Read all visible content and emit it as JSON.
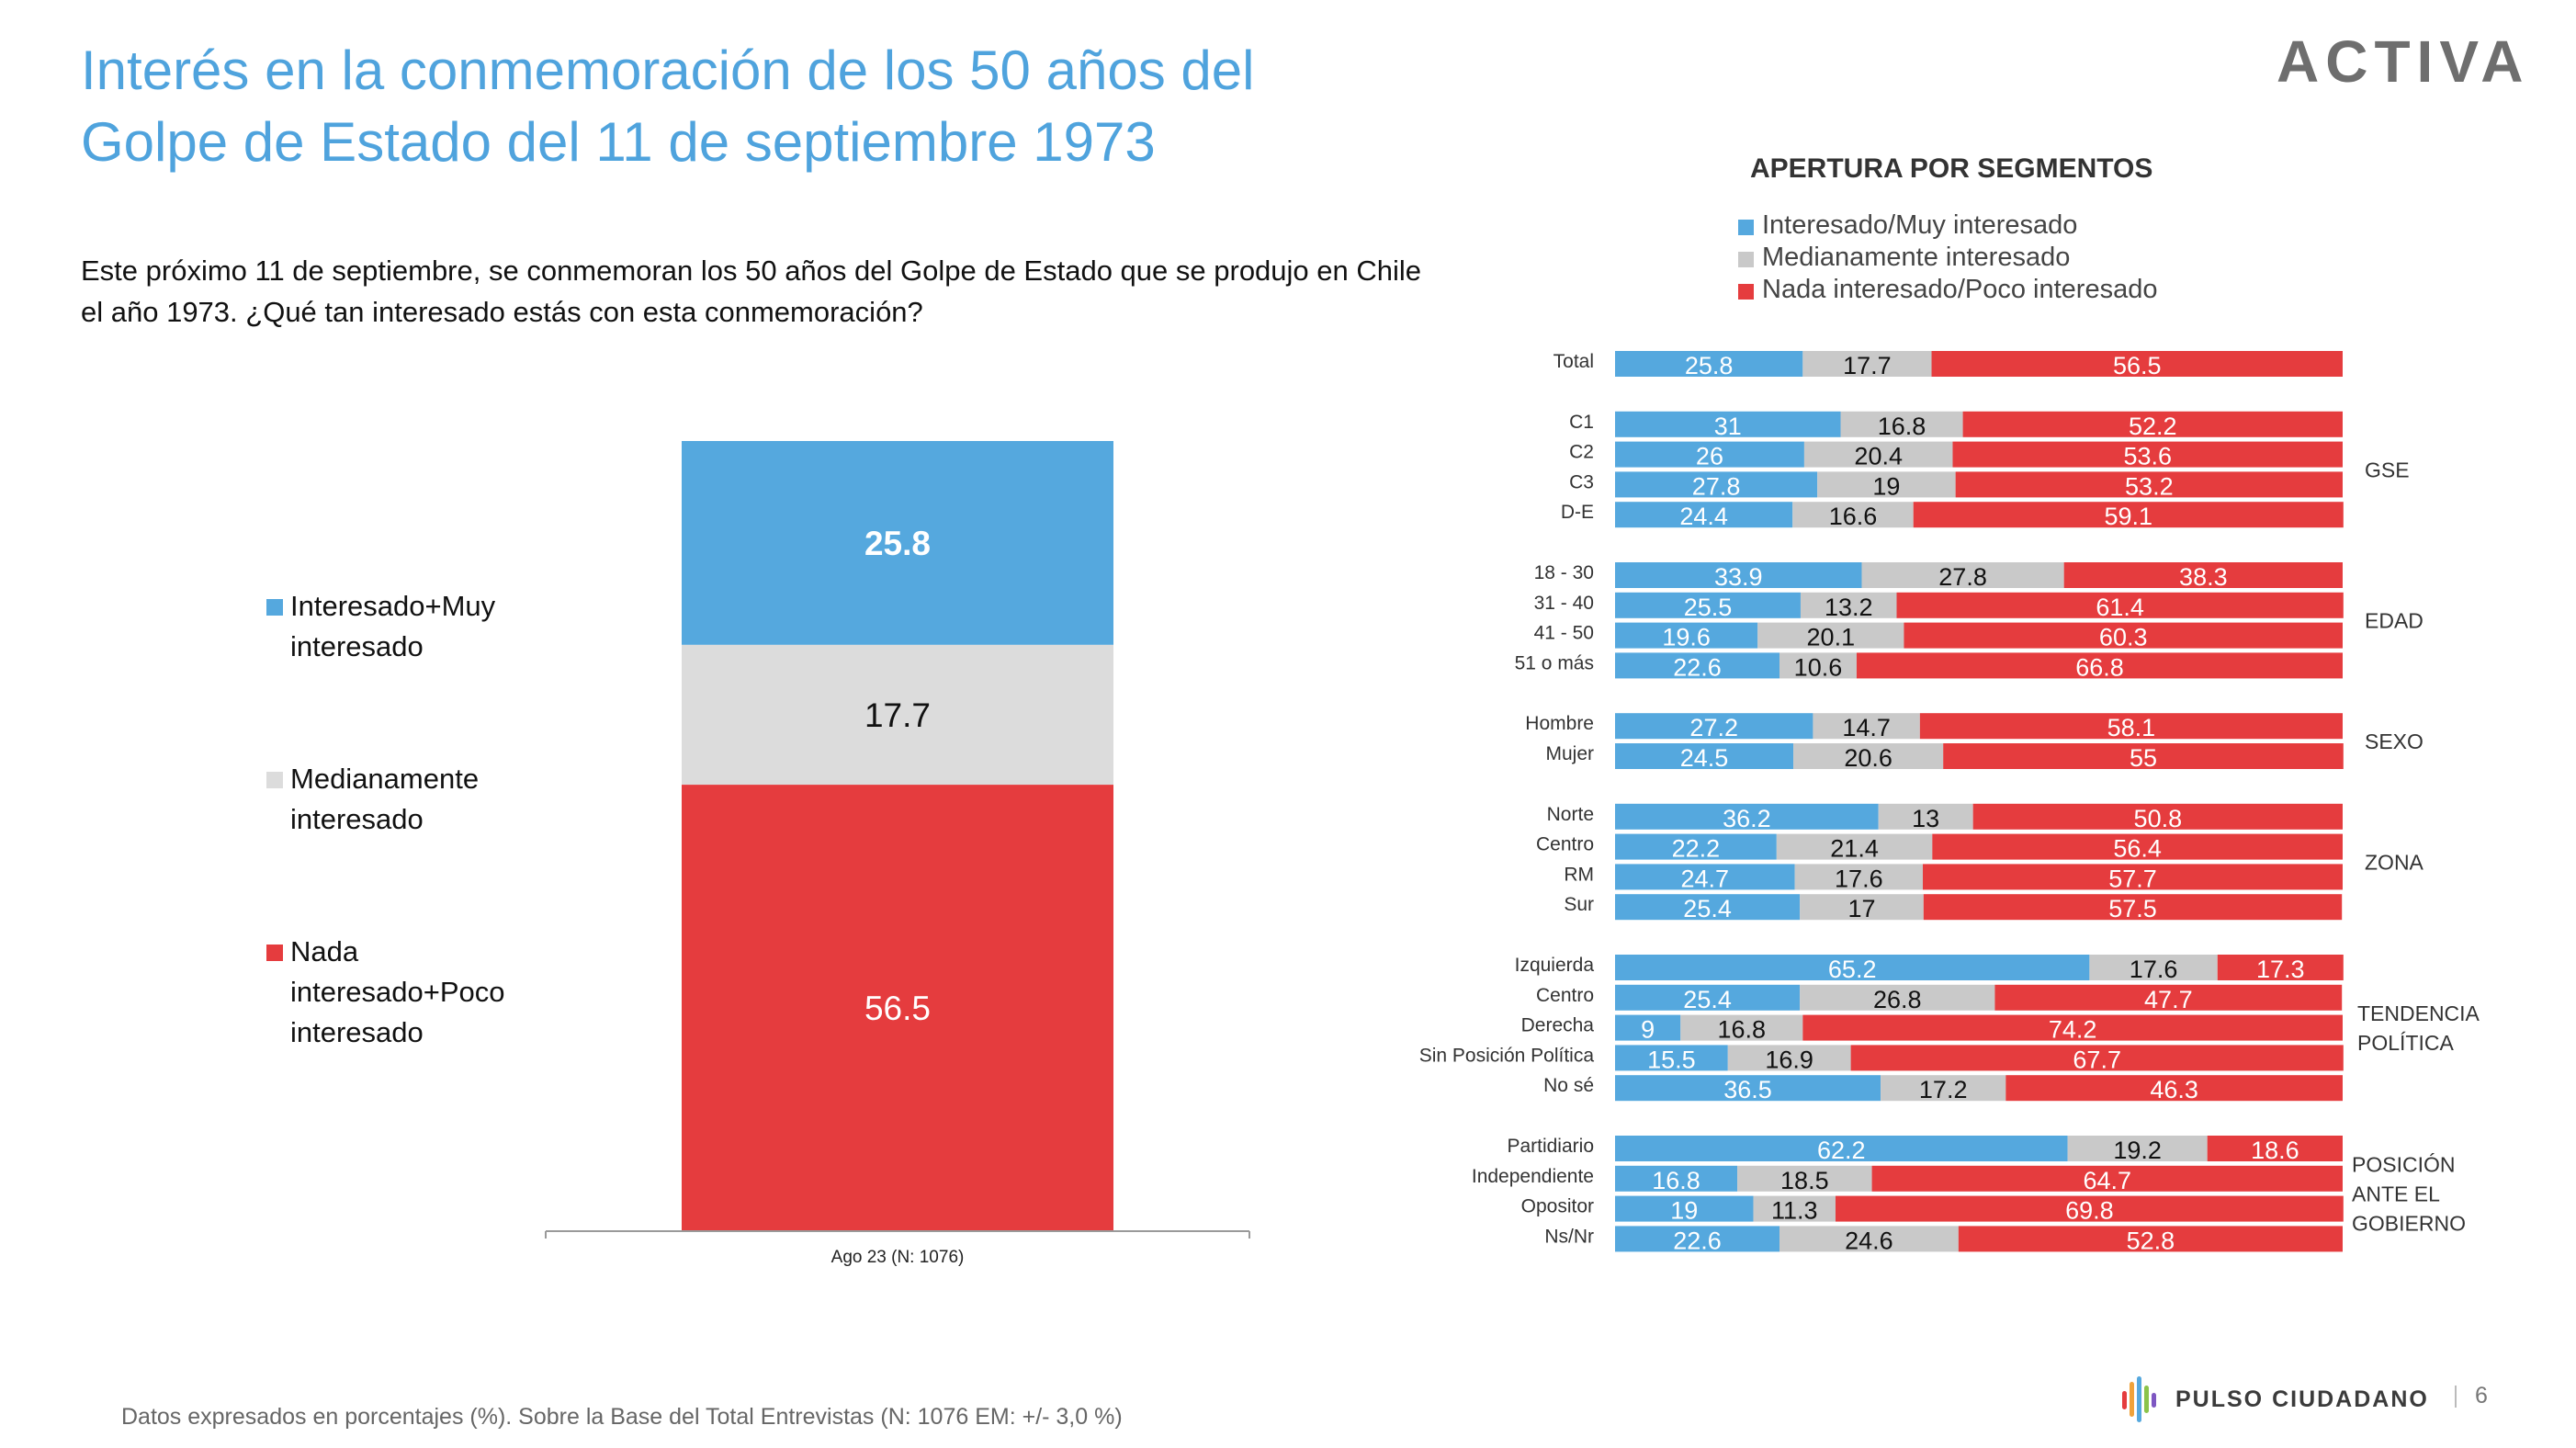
{
  "header": {
    "title_line1": "Interés en la conmemoración de los 50 años del",
    "title_line2": "Golpe de Estado del 11 de  septiembre 1973",
    "brand": "ACTIVA"
  },
  "question": "Este próximo 11 de septiembre, se conmemoran los 50 años del Golpe de Estado que se produjo en Chile el año 1973. ¿Qué tan interesado estás con esta conmemoración?",
  "colors": {
    "blue": "#55a8de",
    "gray": "#c9c9c9",
    "gray_light": "#dcdcdc",
    "red": "#e53c3e",
    "title_blue": "#4fa3dd"
  },
  "chart_data": [
    {
      "type": "bar",
      "stacked": true,
      "categories": [
        "Ago 23 (N: 1076)"
      ],
      "series": [
        {
          "name": "Interesado+Muy interesado",
          "values": [
            25.8
          ]
        },
        {
          "name": "Medianamente interesado",
          "values": [
            17.7
          ]
        },
        {
          "name": "Nada interesado+Poco interesado",
          "values": [
            56.5
          ]
        }
      ],
      "ylim": [
        0,
        100
      ],
      "legend": "left"
    },
    {
      "type": "bar",
      "orientation": "horizontal",
      "stacked": true,
      "title": "APERTURA POR SEGMENTOS",
      "legend": "top",
      "series_names": [
        "Interesado/Muy interesado",
        "Medianamente interesado",
        "Nada interesado/Poco interesado"
      ],
      "xlim": [
        0,
        100
      ],
      "groups": [
        {
          "label": "",
          "rows": [
            {
              "label": "Total",
              "values": [
                25.8,
                17.7,
                56.5
              ]
            }
          ]
        },
        {
          "label": "GSE",
          "rows": [
            {
              "label": "C1",
              "values": [
                31,
                16.8,
                52.2
              ]
            },
            {
              "label": "C2",
              "values": [
                26,
                20.4,
                53.6
              ]
            },
            {
              "label": "C3",
              "values": [
                27.8,
                19,
                53.2
              ]
            },
            {
              "label": "D-E",
              "values": [
                24.4,
                16.6,
                59.1
              ]
            }
          ]
        },
        {
          "label": "EDAD",
          "rows": [
            {
              "label": "18 - 30",
              "values": [
                33.9,
                27.8,
                38.3
              ]
            },
            {
              "label": "31 - 40",
              "values": [
                25.5,
                13.2,
                61.4
              ]
            },
            {
              "label": "41 - 50",
              "values": [
                19.6,
                20.1,
                60.3
              ]
            },
            {
              "label": "51 o más",
              "values": [
                22.6,
                10.6,
                66.8
              ]
            }
          ]
        },
        {
          "label": "SEXO",
          "rows": [
            {
              "label": "Hombre",
              "values": [
                27.2,
                14.7,
                58.1
              ]
            },
            {
              "label": "Mujer",
              "values": [
                24.5,
                20.6,
                55
              ]
            }
          ]
        },
        {
          "label": "ZONA",
          "rows": [
            {
              "label": "Norte",
              "values": [
                36.2,
                13,
                50.8
              ]
            },
            {
              "label": "Centro",
              "values": [
                22.2,
                21.4,
                56.4
              ]
            },
            {
              "label": "RM",
              "values": [
                24.7,
                17.6,
                57.7
              ]
            },
            {
              "label": "Sur",
              "values": [
                25.4,
                17,
                57.5
              ]
            }
          ]
        },
        {
          "label": "TENDENCIA POLÍTICA",
          "label_lines": [
            "TENDENCIA",
            "POLÍTICA"
          ],
          "rows": [
            {
              "label": "Izquierda",
              "values": [
                65.2,
                17.6,
                17.3
              ]
            },
            {
              "label": "Centro",
              "values": [
                25.4,
                26.8,
                47.7
              ]
            },
            {
              "label": "Derecha",
              "values": [
                9,
                16.8,
                74.2
              ]
            },
            {
              "label": "Sin Posición Política",
              "values": [
                15.5,
                16.9,
                67.7
              ]
            },
            {
              "label": "No sé",
              "values": [
                36.5,
                17.2,
                46.3
              ]
            }
          ]
        },
        {
          "label": "POSICIÓN ANTE EL GOBIERNO",
          "label_lines": [
            "POSICIÓN",
            "ANTE EL",
            "GOBIERNO"
          ],
          "rows": [
            {
              "label": "Partidiario",
              "values": [
                62.2,
                19.2,
                18.6
              ]
            },
            {
              "label": "Independiente",
              "values": [
                16.8,
                18.5,
                64.7
              ]
            },
            {
              "label": "Opositor",
              "values": [
                19,
                11.3,
                69.8
              ]
            },
            {
              "label": "Ns/Nr",
              "values": [
                22.6,
                24.6,
                52.8
              ]
            }
          ]
        }
      ]
    }
  ],
  "main_legend": [
    {
      "lines": [
        "Interesado+Muy",
        "interesado"
      ],
      "icon": "blue-square-icon"
    },
    {
      "lines": [
        "Medianamente",
        "interesado"
      ],
      "icon": "gray-square-icon"
    },
    {
      "lines": [
        "Nada",
        "interesado+Poco",
        "interesado"
      ],
      "icon": "red-square-icon"
    }
  ],
  "footer": {
    "note": "Datos expresados en porcentajes (%). Sobre la Base del Total Entrevistas (N: 1076 EM: +/- 3,0 %)",
    "logo_text": "PULSO CIUDADANO",
    "page": "6"
  }
}
